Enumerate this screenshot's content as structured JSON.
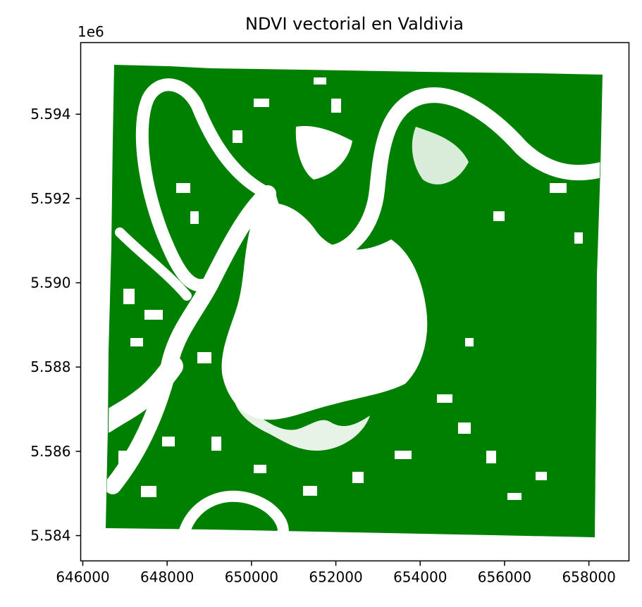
{
  "chart_data": {
    "type": "map",
    "title": "NDVI vectorial en Valdivia",
    "y_offset_label": "1e6",
    "x_ticks": [
      "646000",
      "648000",
      "650000",
      "652000",
      "654000",
      "656000",
      "658000"
    ],
    "y_ticks": [
      "5.584",
      "5.586",
      "5.588",
      "5.590",
      "5.592",
      "5.594"
    ],
    "x_range": [
      645950,
      658950
    ],
    "y_range": [
      5.5834,
      5.5957
    ],
    "polygon_color": "#008000",
    "background_color": "#ffffff",
    "grid": false
  }
}
